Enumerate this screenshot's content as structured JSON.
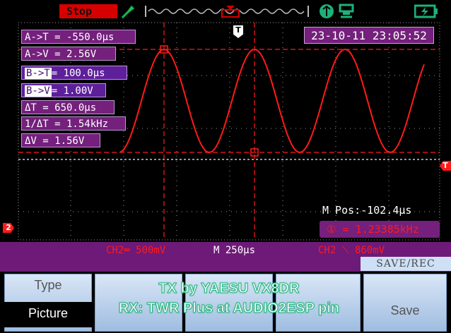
{
  "header": {
    "status": "Stop",
    "datetime": "23-10-11 23:05:52"
  },
  "measurements": [
    {
      "tag": "",
      "text": "A->T = -550.0µs"
    },
    {
      "tag": "",
      "text": "A->V = 2.56V"
    },
    {
      "tag": "B->T",
      "text": "= 100.0µs"
    },
    {
      "tag": "B->V",
      "text": "= 1.00V"
    },
    {
      "tag": "",
      "text": "ΔT = 650.0µs"
    },
    {
      "tag": "",
      "text": "1/ΔT = 1.54kHz"
    },
    {
      "tag": "",
      "text": "ΔV = 1.56V"
    }
  ],
  "readouts": {
    "mpos": "M Pos:-102.4µs",
    "freq": "① = 1.23385kHz",
    "ch2_scale": "CH2═ 500mV",
    "timebase": "M 250µs",
    "ch2_trigger": "CH2 ⟍ 860mV"
  },
  "markers": {
    "trigger": "T",
    "trigger_level": "T",
    "channel": "2"
  },
  "menu": {
    "title": "SAVE/REC",
    "type_label": "Type",
    "type_value": "Picture",
    "save_label": "Save"
  },
  "caption": {
    "line1": "TX by YAESU VX8DR",
    "line2": "RX: TWR Plus at AUDIO2ESP pin"
  },
  "colors": {
    "trace": "#ff1a1a",
    "menu_purple": "#74207c",
    "grid": "#b8b8b8",
    "status_green": "#1db27a"
  },
  "icons": [
    "usb-icon",
    "battery-icon",
    "probe-icon",
    "trigger-icon",
    "save-icon"
  ]
}
